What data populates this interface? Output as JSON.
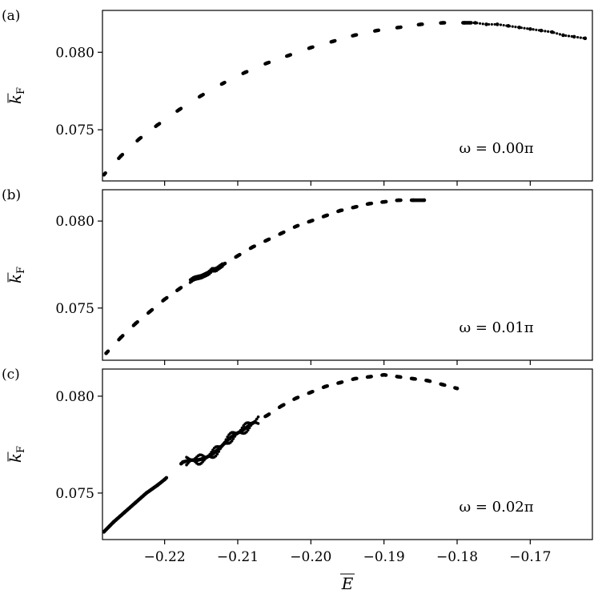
{
  "chart_data": [
    {
      "type": "scatter",
      "panel_label": "(a)",
      "annotation": "ω = 0.00π",
      "ylabel": "k̅F",
      "ylabel_main": "k",
      "ylabel_sub": "F",
      "xlim": [
        -0.2285,
        -0.1615
      ],
      "ylim": [
        0.0717,
        0.0827
      ],
      "yticks": [
        0.075,
        0.08
      ],
      "ytick_labels": [
        "0.075",
        "0.080"
      ],
      "xticks": [
        -0.22,
        -0.21,
        -0.2,
        -0.19,
        -0.18,
        -0.17
      ],
      "show_xtick_labels": false,
      "series": [
        {
          "x": [
            -0.2283,
            -0.226,
            -0.2235,
            -0.221,
            -0.218,
            -0.215,
            -0.212,
            -0.209,
            -0.206,
            -0.203,
            -0.2,
            -0.197,
            -0.194,
            -0.191,
            -0.188,
            -0.185,
            -0.182,
            -0.179,
            -0.1775,
            -0.176,
            -0.1745,
            -0.173,
            -0.1715,
            -0.17,
            -0.1685,
            -0.167,
            -0.1655,
            -0.164,
            -0.1625
          ],
          "y": [
            0.0721,
            0.0733,
            0.0744,
            0.0753,
            0.0763,
            0.0772,
            0.078,
            0.0787,
            0.0793,
            0.0798,
            0.0803,
            0.0807,
            0.0811,
            0.0814,
            0.0816,
            0.0818,
            0.0819,
            0.0819,
            0.0819,
            0.0818,
            0.0818,
            0.0817,
            0.0816,
            0.0815,
            0.0814,
            0.0813,
            0.0811,
            0.081,
            0.0809
          ]
        }
      ]
    },
    {
      "type": "scatter",
      "panel_label": "(b)",
      "annotation": "ω = 0.01π",
      "ylabel": "k̅F",
      "ylabel_main": "k",
      "ylabel_sub": "F",
      "xlim": [
        -0.2285,
        -0.1615
      ],
      "ylim": [
        0.072,
        0.0818
      ],
      "yticks": [
        0.075,
        0.08
      ],
      "ytick_labels": [
        "0.075",
        "0.080"
      ],
      "xticks": [
        -0.22,
        -0.21,
        -0.2,
        -0.19,
        -0.18,
        -0.17
      ],
      "show_xtick_labels": false,
      "series": [
        {
          "x": [
            -0.228,
            -0.226,
            -0.224,
            -0.222,
            -0.22,
            -0.218,
            -0.216,
            -0.215,
            -0.214,
            -0.2135,
            -0.213,
            -0.212,
            -0.21,
            -0.208,
            -0.206,
            -0.204,
            -0.202,
            -0.2,
            -0.198,
            -0.196,
            -0.194,
            -0.192,
            -0.19,
            -0.188,
            -0.186,
            -0.1845
          ],
          "y": [
            0.0724,
            0.0733,
            0.0741,
            0.0748,
            0.0755,
            0.0761,
            0.0767,
            0.0768,
            0.077,
            0.0772,
            0.0772,
            0.0775,
            0.078,
            0.0785,
            0.0789,
            0.0793,
            0.0797,
            0.08,
            0.0803,
            0.0806,
            0.0808,
            0.081,
            0.0811,
            0.0812,
            0.0812,
            0.0812
          ]
        }
      ]
    },
    {
      "type": "scatter",
      "panel_label": "(c)",
      "annotation": "ω = 0.02π",
      "ylabel": "k̅F",
      "ylabel_main": "k",
      "ylabel_sub": "F",
      "xlabel": "E̅",
      "xlim": [
        -0.2285,
        -0.1615
      ],
      "ylim": [
        0.0726,
        0.0814
      ],
      "yticks": [
        0.075,
        0.08
      ],
      "ytick_labels": [
        "0.075",
        "0.080"
      ],
      "xticks": [
        -0.22,
        -0.21,
        -0.2,
        -0.19,
        -0.18,
        -0.17
      ],
      "xtick_labels": [
        "−0.22",
        "−0.21",
        "−0.20",
        "−0.19",
        "−0.18",
        "−0.17"
      ],
      "show_xtick_labels": true,
      "series": [
        {
          "x": [
            -0.2283,
            -0.227,
            -0.2255,
            -0.224,
            -0.2225,
            -0.221,
            -0.22,
            -0.2175,
            -0.2165,
            -0.2155,
            -0.2145,
            -0.2135,
            -0.2125,
            -0.2115,
            -0.2105,
            -0.2095,
            -0.208,
            -0.206,
            -0.204,
            -0.202,
            -0.2,
            -0.198,
            -0.196,
            -0.194,
            -0.192,
            -0.19,
            -0.188,
            -0.186,
            -0.184,
            -0.182,
            -0.18
          ],
          "y": [
            0.073,
            0.0735,
            0.074,
            0.0745,
            0.075,
            0.0754,
            0.0757,
            0.0766,
            0.0767,
            0.0767,
            0.0768,
            0.077,
            0.0773,
            0.0777,
            0.078,
            0.0782,
            0.0786,
            0.079,
            0.0795,
            0.0799,
            0.0802,
            0.0805,
            0.0807,
            0.0809,
            0.081,
            0.0811,
            0.081,
            0.0809,
            0.0808,
            0.0806,
            0.0804
          ]
        }
      ]
    }
  ]
}
